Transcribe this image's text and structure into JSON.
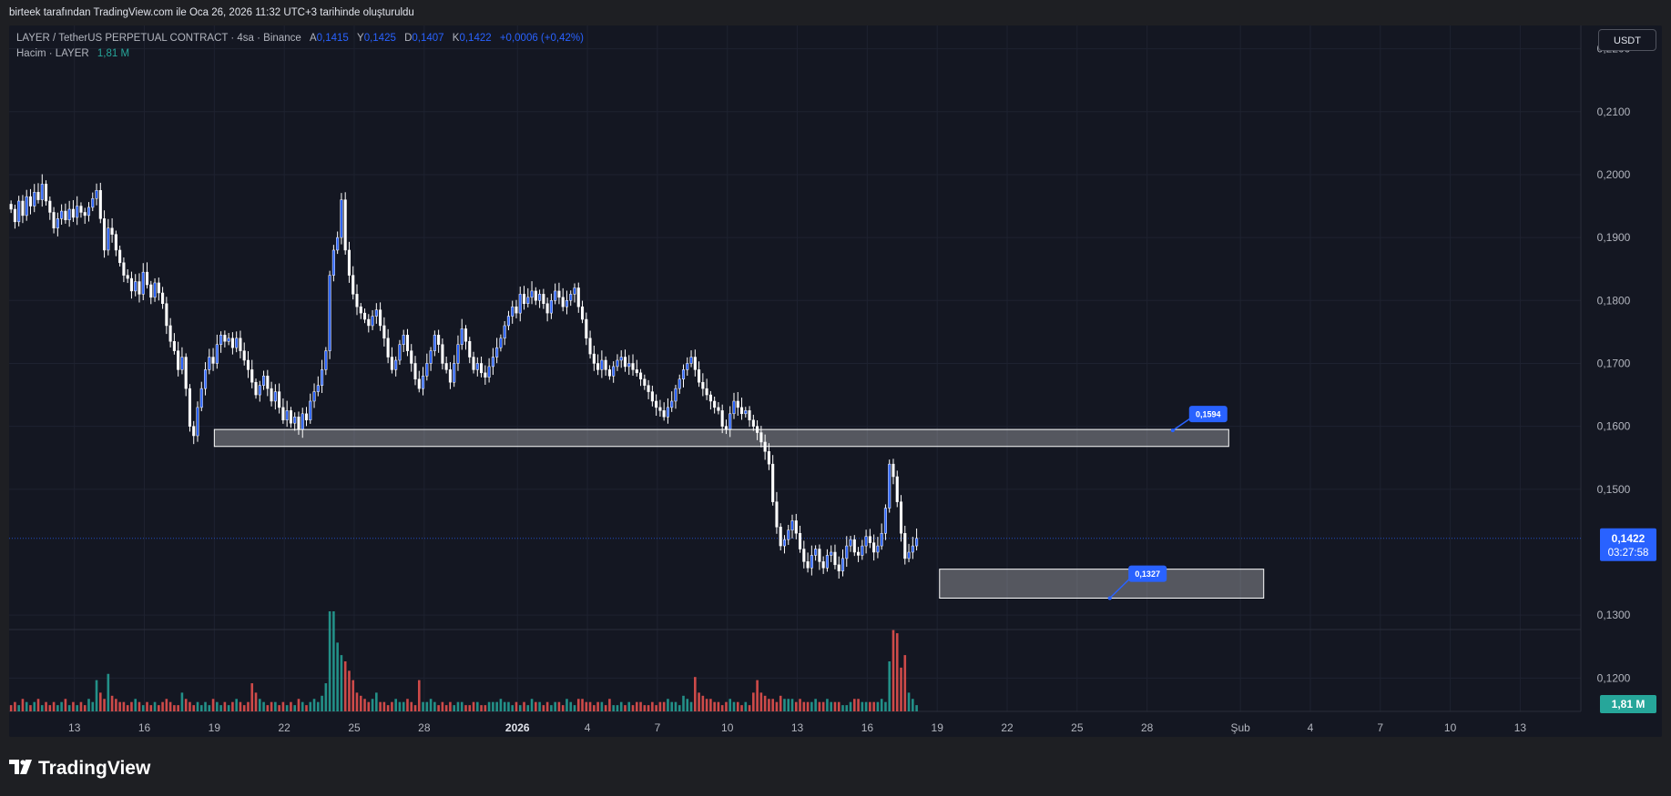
{
  "header": {
    "created_by": "birteek tarafından TradingView.com ile Oca 26, 2026 11:32 UTC+3 tarihinde oluşturuldu"
  },
  "legend": {
    "symbol": "LAYER / TetherUS PERPETUAL CONTRACT · 4sa · Binance",
    "open_label": "A",
    "open": "0,1415",
    "high_label": "Y",
    "high": "0,1425",
    "low_label": "D",
    "low": "0,1407",
    "close_label": "K",
    "close": "0,1422",
    "change": "+0,0006 (+0,42%)",
    "volume_label": "Hacim · LAYER",
    "volume_value": "1,81 M"
  },
  "currency_button": "USDT",
  "price_tag": {
    "price": "0,1422",
    "countdown": "03:27:58"
  },
  "volume_tag": "1,81 M",
  "annotations": {
    "upper": "0,1594",
    "lower": "0,1327"
  },
  "brand": {
    "name": "TradingView"
  },
  "colors": {
    "background": "#141722",
    "bull": "#2962ff",
    "bear": "#ffffff",
    "vol_bull": "#26a69a",
    "vol_bear": "#ef5350",
    "zone": "#ffffff",
    "label": "#2962ff",
    "volume_tag": "#26a69a"
  },
  "chart_data": {
    "type": "candlestick",
    "ylim": [
      0.1147,
      0.2237
    ],
    "y_ticks": [
      {
        "value": 0.22,
        "label": "0,2200"
      },
      {
        "value": 0.21,
        "label": "0,2100"
      },
      {
        "value": 0.2,
        "label": "0,2000"
      },
      {
        "value": 0.19,
        "label": "0,1900"
      },
      {
        "value": 0.18,
        "label": "0,1800"
      },
      {
        "value": 0.17,
        "label": "0,1700"
      },
      {
        "value": 0.16,
        "label": "0,1600"
      },
      {
        "value": 0.15,
        "label": "0,1500"
      },
      {
        "value": 0.13,
        "label": "0,1300"
      },
      {
        "value": 0.12,
        "label": "0,1200"
      }
    ],
    "x_ticks": [
      {
        "day": 13,
        "label": "13",
        "bold": false
      },
      {
        "day": 16,
        "label": "16",
        "bold": false
      },
      {
        "day": 19,
        "label": "19",
        "bold": false
      },
      {
        "day": 22,
        "label": "22",
        "bold": false
      },
      {
        "day": 25,
        "label": "25",
        "bold": false
      },
      {
        "day": 28,
        "label": "28",
        "bold": false
      },
      {
        "day": 32,
        "label": "2026",
        "bold": true
      },
      {
        "day": 35,
        "label": "4",
        "bold": false
      },
      {
        "day": 38,
        "label": "7",
        "bold": false
      },
      {
        "day": 41,
        "label": "10",
        "bold": false
      },
      {
        "day": 44,
        "label": "13",
        "bold": false
      },
      {
        "day": 47,
        "label": "16",
        "bold": false
      },
      {
        "day": 50,
        "label": "19",
        "bold": false
      },
      {
        "day": 53,
        "label": "22",
        "bold": false
      },
      {
        "day": 56,
        "label": "25",
        "bold": false
      },
      {
        "day": 59,
        "label": "28",
        "bold": false
      },
      {
        "day": 63,
        "label": "Şub",
        "bold": false
      },
      {
        "day": 66,
        "label": "4",
        "bold": false
      },
      {
        "day": 69,
        "label": "7",
        "bold": false
      },
      {
        "day": 72,
        "label": "10",
        "bold": false
      },
      {
        "day": 75,
        "label": "13",
        "bold": false
      }
    ],
    "x_range_days": [
      10.2,
      77.6
    ],
    "start_day": 10.2,
    "bars_per_day": 6,
    "closes": [
      0.1945,
      0.1925,
      0.1958,
      0.1935,
      0.1965,
      0.195,
      0.1972,
      0.196,
      0.1985,
      0.1958,
      0.194,
      0.1915,
      0.193,
      0.1942,
      0.1928,
      0.1945,
      0.1932,
      0.195,
      0.194,
      0.1935,
      0.1948,
      0.1962,
      0.1975,
      0.193,
      0.188,
      0.1915,
      0.1905,
      0.188,
      0.186,
      0.184,
      0.1835,
      0.1815,
      0.183,
      0.181,
      0.1845,
      0.1825,
      0.1805,
      0.1828,
      0.1812,
      0.1795,
      0.176,
      0.1735,
      0.172,
      0.169,
      0.171,
      0.166,
      0.16,
      0.1585,
      0.163,
      0.166,
      0.169,
      0.171,
      0.17,
      0.173,
      0.1745,
      0.1735,
      0.174,
      0.1725,
      0.174,
      0.172,
      0.1705,
      0.169,
      0.167,
      0.165,
      0.1665,
      0.168,
      0.166,
      0.164,
      0.1655,
      0.163,
      0.161,
      0.1625,
      0.1605,
      0.1615,
      0.1595,
      0.162,
      0.161,
      0.164,
      0.1655,
      0.1665,
      0.169,
      0.172,
      0.184,
      0.188,
      0.19,
      0.196,
      0.188,
      0.184,
      0.181,
      0.179,
      0.178,
      0.177,
      0.176,
      0.1775,
      0.1785,
      0.176,
      0.174,
      0.171,
      0.169,
      0.1705,
      0.173,
      0.1745,
      0.172,
      0.17,
      0.1675,
      0.166,
      0.168,
      0.17,
      0.172,
      0.1745,
      0.173,
      0.17,
      0.169,
      0.167,
      0.17,
      0.173,
      0.1755,
      0.1735,
      0.171,
      0.169,
      0.17,
      0.1685,
      0.1678,
      0.1695,
      0.171,
      0.1725,
      0.174,
      0.176,
      0.1775,
      0.179,
      0.178,
      0.181,
      0.1795,
      0.1805,
      0.1815,
      0.18,
      0.181,
      0.1795,
      0.178,
      0.18,
      0.1815,
      0.1805,
      0.179,
      0.18,
      0.181,
      0.182,
      0.179,
      0.177,
      0.174,
      0.1715,
      0.17,
      0.169,
      0.1705,
      0.169,
      0.168,
      0.1695,
      0.1705,
      0.171,
      0.1695,
      0.17,
      0.169,
      0.1685,
      0.1675,
      0.1665,
      0.1655,
      0.164,
      0.163,
      0.1625,
      0.1615,
      0.163,
      0.164,
      0.166,
      0.1675,
      0.169,
      0.17,
      0.171,
      0.169,
      0.167,
      0.166,
      0.165,
      0.164,
      0.163,
      0.1625,
      0.16,
      0.1595,
      0.162,
      0.164,
      0.163,
      0.162,
      0.1625,
      0.161,
      0.16,
      0.159,
      0.1575,
      0.156,
      0.154,
      0.148,
      0.144,
      0.141,
      0.142,
      0.1435,
      0.145,
      0.143,
      0.1405,
      0.1385,
      0.1375,
      0.1395,
      0.1405,
      0.1385,
      0.1375,
      0.1395,
      0.14,
      0.138,
      0.137,
      0.139,
      0.141,
      0.142,
      0.14,
      0.1395,
      0.141,
      0.1425,
      0.1415,
      0.14,
      0.141,
      0.143,
      0.147,
      0.154,
      0.152,
      0.148,
      0.143,
      0.139,
      0.14,
      0.141,
      0.1422
    ],
    "volumes": [
      2,
      3,
      2,
      4,
      3,
      2,
      3,
      4,
      2,
      3,
      2,
      3,
      2,
      3,
      4,
      2,
      3,
      2,
      3,
      2,
      4,
      3,
      10,
      6,
      4,
      12,
      5,
      4,
      3,
      3,
      2,
      3,
      4,
      3,
      2,
      3,
      2,
      3,
      2,
      3,
      4,
      3,
      2,
      2,
      6,
      4,
      3,
      2,
      3,
      2,
      3,
      2,
      4,
      3,
      2,
      3,
      2,
      3,
      4,
      3,
      2,
      3,
      9,
      6,
      4,
      3,
      2,
      3,
      3,
      2,
      3,
      2,
      3,
      2,
      4,
      3,
      2,
      3,
      4,
      3,
      5,
      9,
      32,
      32,
      22,
      18,
      16,
      13,
      10,
      6,
      5,
      4,
      3,
      4,
      6,
      3,
      3,
      2,
      3,
      4,
      3,
      3,
      4,
      3,
      2,
      10,
      3,
      3,
      4,
      3,
      2,
      3,
      2,
      3,
      2,
      3,
      3,
      2,
      2,
      3,
      3,
      2,
      2,
      3,
      3,
      3,
      4,
      3,
      3,
      2,
      3,
      2,
      3,
      2,
      4,
      3,
      3,
      2,
      3,
      2,
      3,
      3,
      2,
      4,
      3,
      2,
      4,
      4,
      3,
      3,
      2,
      3,
      3,
      2,
      4,
      2,
      2,
      3,
      2,
      3,
      2,
      3,
      3,
      2,
      2,
      3,
      2,
      3,
      3,
      4,
      3,
      3,
      2,
      5,
      4,
      3,
      11,
      6,
      5,
      4,
      4,
      3,
      3,
      2,
      3,
      4,
      3,
      3,
      2,
      3,
      2,
      6,
      10,
      6,
      5,
      4,
      4,
      3,
      5,
      4,
      4,
      4,
      3,
      4,
      3,
      3,
      3,
      4,
      3,
      3,
      4,
      3,
      3,
      3,
      2,
      2,
      3,
      4,
      4,
      3,
      3,
      3,
      3,
      3,
      4,
      3,
      16,
      26,
      25,
      14,
      18,
      6,
      4,
      2
    ],
    "series": [
      {
        "name": "Hacim · LAYER",
        "type": "volume"
      }
    ],
    "zones": [
      {
        "name": "upper",
        "x_from_day": 19.0,
        "x_to_day": 62.5,
        "y_low": 0.1568,
        "y_high": 0.1595,
        "label": "0,1594",
        "label_day": 60.8
      },
      {
        "name": "lower",
        "x_from_day": 50.1,
        "x_to_day": 64.0,
        "y_low": 0.1327,
        "y_high": 0.1373,
        "label": "0,1327",
        "label_day": 58.2
      }
    ],
    "last_price": 0.1422
  }
}
